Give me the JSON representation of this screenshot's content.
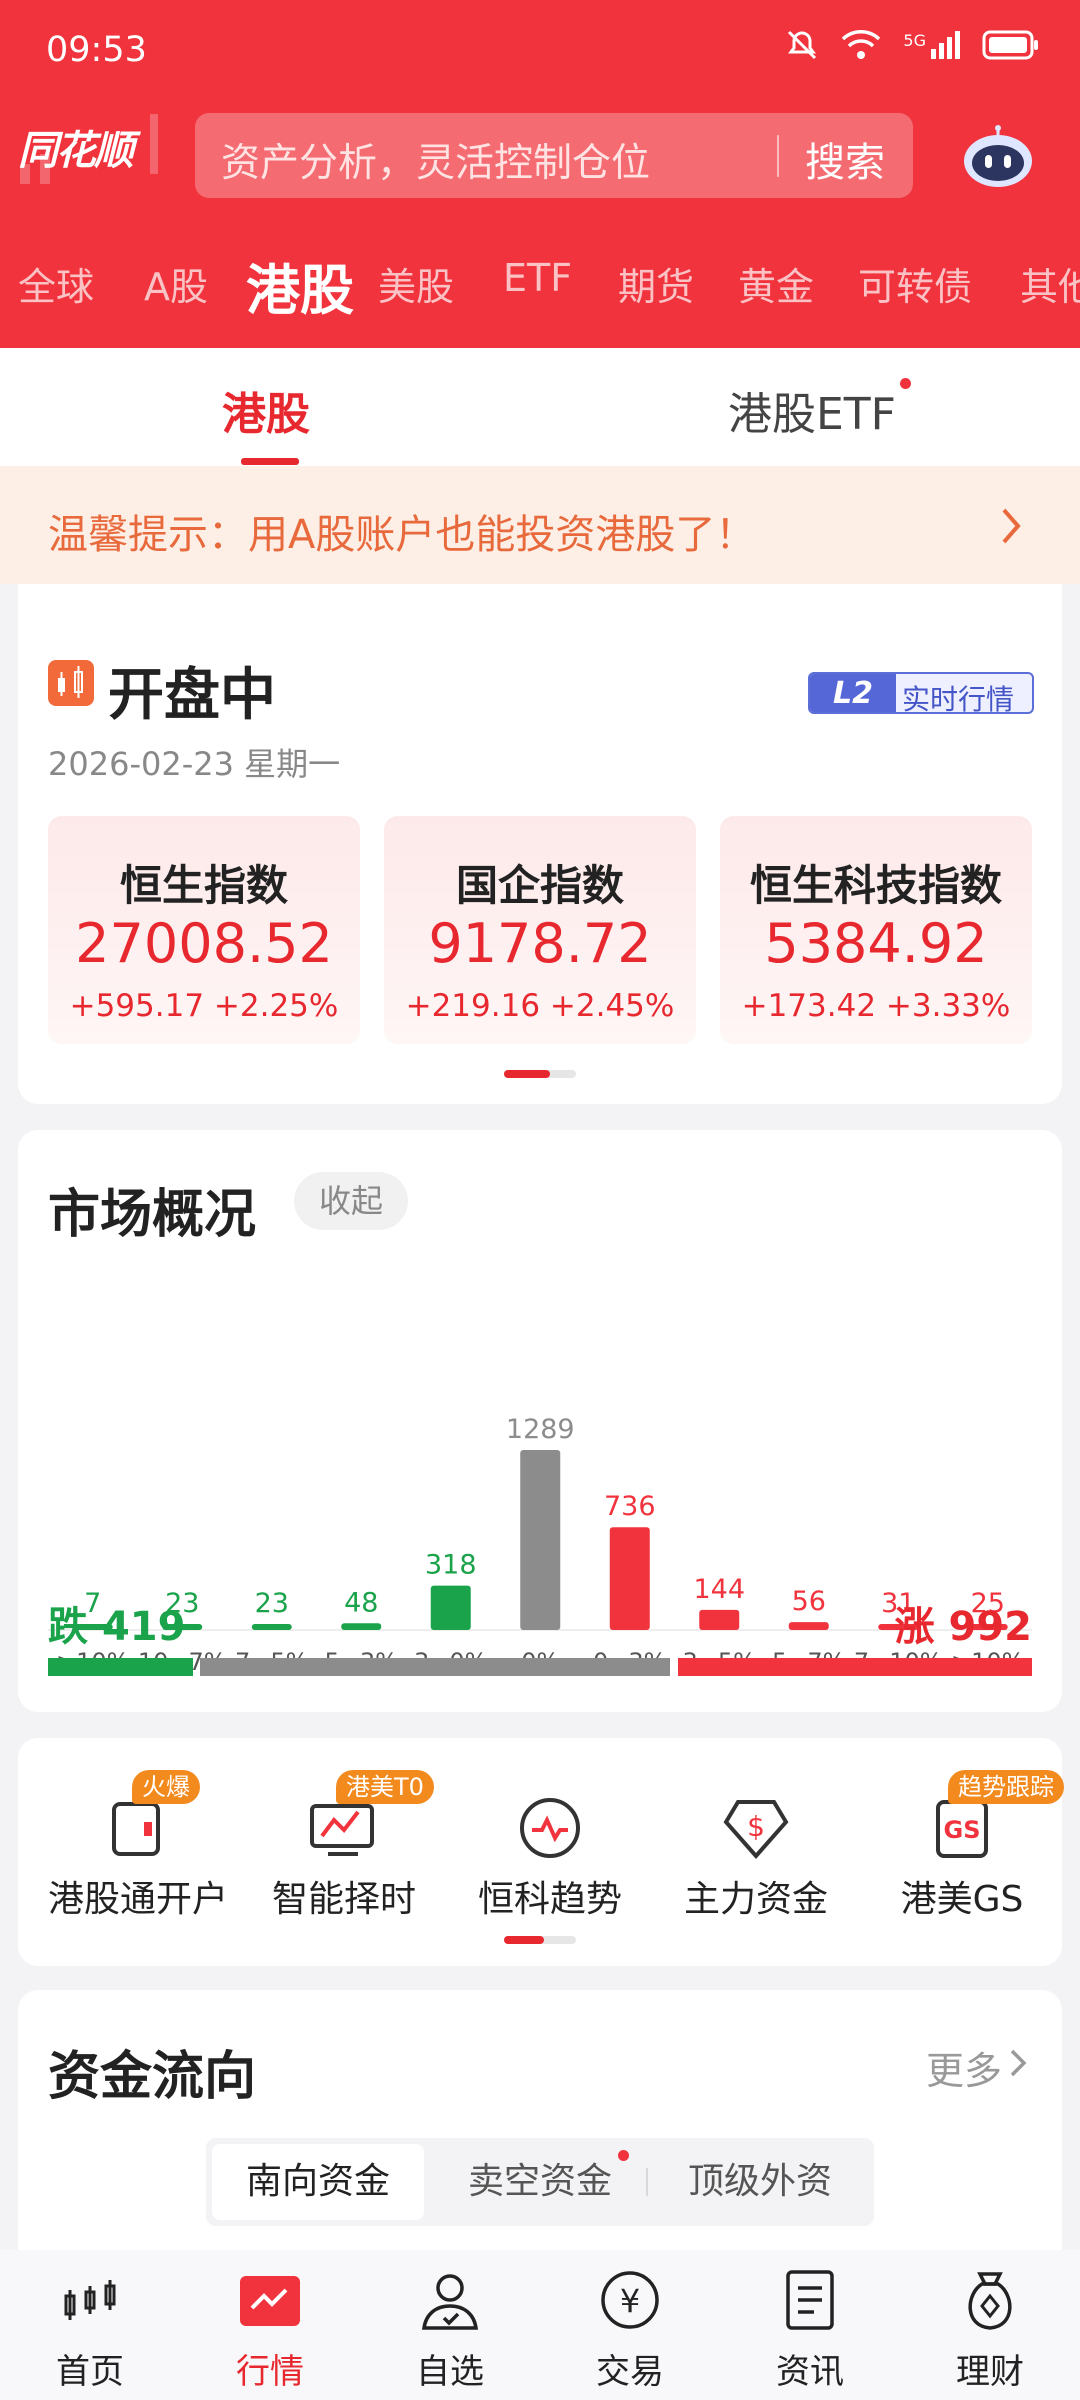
{
  "status_bar": {
    "time": "09:53",
    "network": "5G"
  },
  "header": {
    "logo": "同花顺",
    "search_placeholder": "资产分析，灵活控制仓位",
    "search_button": "搜索"
  },
  "market_tabs": [
    {
      "label": "全球",
      "active": false
    },
    {
      "label": "A股",
      "active": false
    },
    {
      "label": "港股",
      "active": true
    },
    {
      "label": "美股",
      "active": false
    },
    {
      "label": "ETF",
      "active": false
    },
    {
      "label": "期货",
      "active": false
    },
    {
      "label": "黄金",
      "active": false
    },
    {
      "label": "可转债",
      "active": false
    },
    {
      "label": "其他",
      "active": false
    }
  ],
  "sub_tabs": [
    {
      "label": "港股",
      "active": true
    },
    {
      "label": "港股ETF",
      "active": false,
      "has_dot": true
    }
  ],
  "notice": {
    "text": "温馨提示：用A股账户也能投资港股了！"
  },
  "market_open": {
    "status": "开盘中",
    "badge_l2": "L2",
    "badge_text": "实时行情",
    "date": "2026-02-23 星期一",
    "indices": [
      {
        "name": "恒生指数",
        "value": "27008.52",
        "change": "+595.17  +2.25%"
      },
      {
        "name": "国企指数",
        "value": "9178.72",
        "change": "+219.16  +2.45%"
      },
      {
        "name": "恒生科技指数",
        "value": "5384.92",
        "change": "+173.42  +3.33%"
      }
    ]
  },
  "overview": {
    "title": "市场概况",
    "collapse_label": "收起",
    "fall_label": "跌",
    "fall_count": "419",
    "rise_label": "涨",
    "rise_count": "992"
  },
  "chart_data": {
    "type": "bar",
    "categories": [
      ">10%",
      "10~7%",
      "7~5%",
      "5~3%",
      "3~0%",
      "0%",
      "0~3%",
      "3~5%",
      "5~7%",
      "7~10%",
      ">10%"
    ],
    "values": [
      7,
      23,
      23,
      48,
      318,
      1289,
      736,
      144,
      56,
      31,
      25
    ],
    "colors": [
      "#1aa34a",
      "#1aa34a",
      "#1aa34a",
      "#1aa34a",
      "#1aa34a",
      "#8c8c8c",
      "#f0333c",
      "#f0333c",
      "#f0333c",
      "#f0333c",
      "#f0333c"
    ],
    "ylim": [
      0,
      1289
    ],
    "grid": false
  },
  "tools": [
    {
      "label": "港股通开户",
      "badge": "火爆",
      "icon": "account-open-icon"
    },
    {
      "label": "智能择时",
      "badge": "港美T0",
      "icon": "smart-timing-icon"
    },
    {
      "label": "恒科趋势",
      "badge": "",
      "icon": "trend-icon"
    },
    {
      "label": "主力资金",
      "badge": "",
      "icon": "main-capital-icon"
    },
    {
      "label": "港美GS",
      "badge": "趋势跟踪",
      "icon": "gs-icon"
    }
  ],
  "fund_flow": {
    "title": "资金流向",
    "more": "更多",
    "segments": [
      {
        "label": "南向资金",
        "active": true
      },
      {
        "label": "卖空资金",
        "active": false,
        "has_dot": true
      },
      {
        "label": "顶级外资",
        "active": false
      }
    ]
  },
  "bottom_nav": [
    {
      "label": "首页",
      "icon": "home-icon",
      "active": false
    },
    {
      "label": "行情",
      "icon": "market-icon",
      "active": true
    },
    {
      "label": "自选",
      "icon": "watchlist-icon",
      "active": false
    },
    {
      "label": "交易",
      "icon": "trade-icon",
      "active": false
    },
    {
      "label": "资讯",
      "icon": "news-icon",
      "active": false
    },
    {
      "label": "理财",
      "icon": "wealth-icon",
      "active": false
    }
  ],
  "colors": {
    "brand_red": "#f0333c",
    "up_red": "#e8282f",
    "down_green": "#1aa34a",
    "flat_gray": "#8c8c8c",
    "notice_orange": "#e86a3c",
    "badge_orange": "#f38a1e"
  }
}
